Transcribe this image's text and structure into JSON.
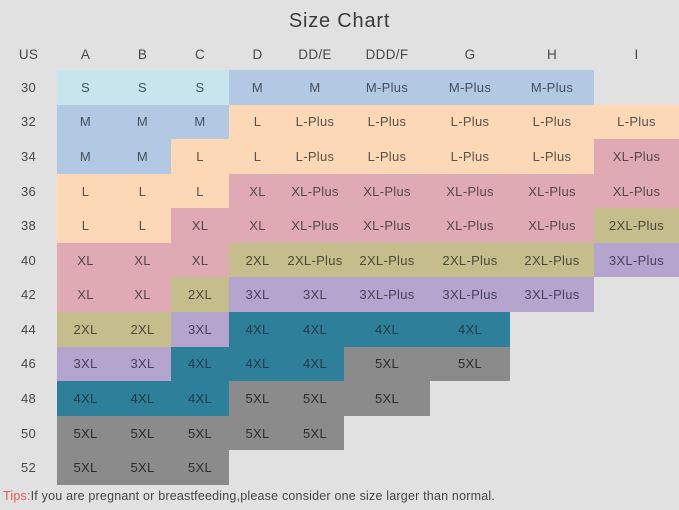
{
  "title": "Size Chart",
  "tips": {
    "label": "Tips:",
    "text": "If you are pregnant or breastfeeding,please consider one size larger than normal."
  },
  "colors": {
    "page_background": "#e1e1e1",
    "title_text": "#3b3b3b",
    "default_cell_text": "#474747",
    "tips_label_red": "#e05a5a",
    "palette": {
      "cyan": {
        "bg": "#c8e4ec",
        "fg": "#3f5560"
      },
      "blue": {
        "bg": "#b3c8e2",
        "fg": "#44505f"
      },
      "peach": {
        "bg": "#fcd8b6",
        "fg": "#59514a"
      },
      "pink": {
        "bg": "#dfaab3",
        "fg": "#56474c"
      },
      "olive": {
        "bg": "#c6bd8c",
        "fg": "#4a4a3a"
      },
      "purple": {
        "bg": "#b5a4ce",
        "fg": "#47425a"
      },
      "teal": {
        "bg": "#2e7f99",
        "fg": "#233a49"
      },
      "gray": {
        "bg": "#8b8b8b",
        "fg": "#2d2d2d"
      }
    }
  },
  "chart_data": {
    "type": "table",
    "title": "Size Chart",
    "columns": [
      "US",
      "A",
      "B",
      "C",
      "D",
      "DD/E",
      "DDD/F",
      "G",
      "H",
      "I"
    ],
    "rows": [
      {
        "us": "30",
        "cells": [
          {
            "v": "S",
            "c": "cyan"
          },
          {
            "v": "S",
            "c": "cyan"
          },
          {
            "v": "S",
            "c": "cyan"
          },
          {
            "v": "M",
            "c": "blue"
          },
          {
            "v": "M",
            "c": "blue"
          },
          {
            "v": "M-Plus",
            "c": "blue"
          },
          {
            "v": "M-Plus",
            "c": "blue"
          },
          {
            "v": "M-Plus",
            "c": "blue"
          },
          null
        ]
      },
      {
        "us": "32",
        "cells": [
          {
            "v": "M",
            "c": "blue"
          },
          {
            "v": "M",
            "c": "blue"
          },
          {
            "v": "M",
            "c": "blue"
          },
          {
            "v": "L",
            "c": "peach"
          },
          {
            "v": "L-Plus",
            "c": "peach"
          },
          {
            "v": "L-Plus",
            "c": "peach"
          },
          {
            "v": "L-Plus",
            "c": "peach"
          },
          {
            "v": "L-Plus",
            "c": "peach"
          },
          {
            "v": "L-Plus",
            "c": "peach"
          }
        ]
      },
      {
        "us": "34",
        "cells": [
          {
            "v": "M",
            "c": "blue"
          },
          {
            "v": "M",
            "c": "blue"
          },
          {
            "v": "L",
            "c": "peach"
          },
          {
            "v": "L",
            "c": "peach"
          },
          {
            "v": "L-Plus",
            "c": "peach"
          },
          {
            "v": "L-Plus",
            "c": "peach"
          },
          {
            "v": "L-Plus",
            "c": "peach"
          },
          {
            "v": "L-Plus",
            "c": "peach"
          },
          {
            "v": "XL-Plus",
            "c": "pink"
          }
        ]
      },
      {
        "us": "36",
        "cells": [
          {
            "v": "L",
            "c": "peach"
          },
          {
            "v": "L",
            "c": "peach"
          },
          {
            "v": "L",
            "c": "peach"
          },
          {
            "v": "XL",
            "c": "pink"
          },
          {
            "v": "XL-Plus",
            "c": "pink"
          },
          {
            "v": "XL-Plus",
            "c": "pink"
          },
          {
            "v": "XL-Plus",
            "c": "pink"
          },
          {
            "v": "XL-Plus",
            "c": "pink"
          },
          {
            "v": "XL-Plus",
            "c": "pink"
          }
        ]
      },
      {
        "us": "38",
        "cells": [
          {
            "v": "L",
            "c": "peach"
          },
          {
            "v": "L",
            "c": "peach"
          },
          {
            "v": "XL",
            "c": "pink"
          },
          {
            "v": "XL",
            "c": "pink"
          },
          {
            "v": "XL-Plus",
            "c": "pink"
          },
          {
            "v": "XL-Plus",
            "c": "pink"
          },
          {
            "v": "XL-Plus",
            "c": "pink"
          },
          {
            "v": "XL-Plus",
            "c": "pink"
          },
          {
            "v": "2XL-Plus",
            "c": "olive"
          }
        ]
      },
      {
        "us": "40",
        "cells": [
          {
            "v": "XL",
            "c": "pink"
          },
          {
            "v": "XL",
            "c": "pink"
          },
          {
            "v": "XL",
            "c": "pink"
          },
          {
            "v": "2XL",
            "c": "olive"
          },
          {
            "v": "2XL-Plus",
            "c": "olive"
          },
          {
            "v": "2XL-Plus",
            "c": "olive"
          },
          {
            "v": "2XL-Plus",
            "c": "olive"
          },
          {
            "v": "2XL-Plus",
            "c": "olive"
          },
          {
            "v": "3XL-Plus",
            "c": "purple"
          }
        ]
      },
      {
        "us": "42",
        "cells": [
          {
            "v": "XL",
            "c": "pink"
          },
          {
            "v": "XL",
            "c": "pink"
          },
          {
            "v": "2XL",
            "c": "olive"
          },
          {
            "v": "3XL",
            "c": "purple"
          },
          {
            "v": "3XL",
            "c": "purple"
          },
          {
            "v": "3XL-Plus",
            "c": "purple"
          },
          {
            "v": "3XL-Plus",
            "c": "purple"
          },
          {
            "v": "3XL-Plus",
            "c": "purple"
          },
          null
        ]
      },
      {
        "us": "44",
        "cells": [
          {
            "v": "2XL",
            "c": "olive"
          },
          {
            "v": "2XL",
            "c": "olive"
          },
          {
            "v": "3XL",
            "c": "purple"
          },
          {
            "v": "4XL",
            "c": "teal"
          },
          {
            "v": "4XL",
            "c": "teal"
          },
          {
            "v": "4XL",
            "c": "teal"
          },
          {
            "v": "4XL",
            "c": "teal"
          },
          null,
          null
        ]
      },
      {
        "us": "46",
        "cells": [
          {
            "v": "3XL",
            "c": "purple"
          },
          {
            "v": "3XL",
            "c": "purple"
          },
          {
            "v": "4XL",
            "c": "teal"
          },
          {
            "v": "4XL",
            "c": "teal"
          },
          {
            "v": "4XL",
            "c": "teal"
          },
          {
            "v": "5XL",
            "c": "gray"
          },
          {
            "v": "5XL",
            "c": "gray"
          },
          null,
          null
        ]
      },
      {
        "us": "48",
        "cells": [
          {
            "v": "4XL",
            "c": "teal"
          },
          {
            "v": "4XL",
            "c": "teal"
          },
          {
            "v": "4XL",
            "c": "teal"
          },
          {
            "v": "5XL",
            "c": "gray"
          },
          {
            "v": "5XL",
            "c": "gray"
          },
          {
            "v": "5XL",
            "c": "gray"
          },
          null,
          null,
          null
        ]
      },
      {
        "us": "50",
        "cells": [
          {
            "v": "5XL",
            "c": "gray"
          },
          {
            "v": "5XL",
            "c": "gray"
          },
          {
            "v": "5XL",
            "c": "gray"
          },
          {
            "v": "5XL",
            "c": "gray"
          },
          {
            "v": "5XL",
            "c": "gray"
          },
          null,
          null,
          null,
          null
        ]
      },
      {
        "us": "52",
        "cells": [
          {
            "v": "5XL",
            "c": "gray"
          },
          {
            "v": "5XL",
            "c": "gray"
          },
          {
            "v": "5XL",
            "c": "gray"
          },
          null,
          null,
          null,
          null,
          null,
          null
        ]
      }
    ]
  }
}
